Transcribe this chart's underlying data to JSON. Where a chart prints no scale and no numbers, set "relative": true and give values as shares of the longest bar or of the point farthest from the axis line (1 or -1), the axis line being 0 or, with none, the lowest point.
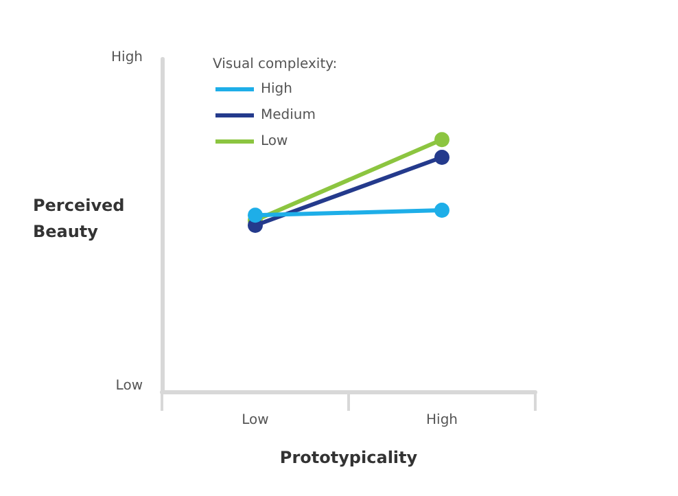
{
  "chart_data": {
    "type": "line",
    "relative": true,
    "xlabel": "Prototypicality",
    "ylabel": "Perceived Beauty",
    "legend_title": "Visual complexity:",
    "annotations": [
      "High",
      "Low"
    ],
    "categories": [
      "Low",
      "High"
    ],
    "series": [
      {
        "name": "High",
        "color": "#1eaee8",
        "values": [
          0.7,
          0.72
        ]
      },
      {
        "name": "Medium",
        "color": "#243a8c",
        "values": [
          0.66,
          0.93
        ]
      },
      {
        "name": "Low",
        "color": "#8cc540",
        "values": [
          0.68,
          1
        ]
      }
    ],
    "grid": false,
    "legend": "top left",
    "marker": "circle",
    "line_style": "solid"
  }
}
